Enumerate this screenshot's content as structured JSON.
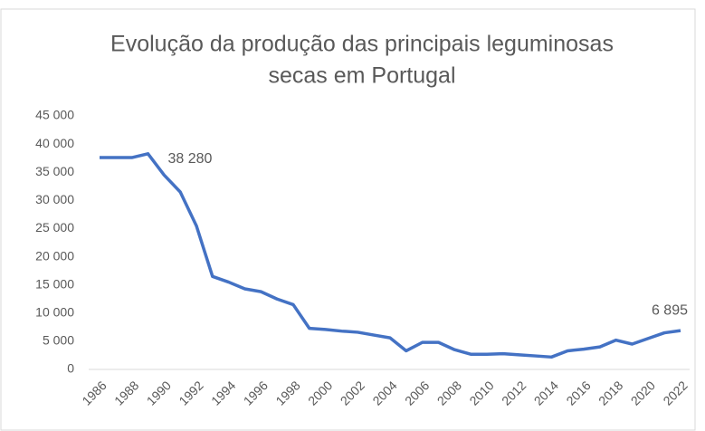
{
  "chart_data": {
    "type": "line",
    "title": [
      "Evolução da produção das principais leguminosas",
      "secas em Portugal"
    ],
    "categories": [
      "1986",
      null,
      "1988",
      null,
      "1990",
      null,
      "1992",
      null,
      "1994",
      null,
      "1996",
      null,
      "1998",
      null,
      "2000",
      null,
      "2002",
      null,
      "2004",
      null,
      "2006",
      null,
      "2008",
      null,
      "2010",
      null,
      "2012",
      null,
      "2014",
      null,
      "2016",
      null,
      "2018",
      null,
      "2020",
      null,
      "2022"
    ],
    "series": [
      {
        "color": "#4472c4",
        "values": [
          37600,
          37600,
          37600,
          38280,
          34500,
          31500,
          25500,
          16500,
          15500,
          14300,
          13800,
          12500,
          11500,
          7300,
          7100,
          6800,
          6600,
          6100,
          5600,
          3300,
          4800,
          4800,
          3500,
          2700,
          2700,
          2800,
          2600,
          2400,
          2200,
          3300,
          3600,
          4000,
          5200,
          4500,
          5500,
          6500,
          6895
        ],
        "value_labels": [
          null,
          null,
          null,
          "38 280",
          null,
          null,
          null,
          null,
          null,
          null,
          null,
          null,
          null,
          null,
          null,
          null,
          null,
          null,
          null,
          null,
          null,
          null,
          null,
          null,
          null,
          null,
          null,
          null,
          null,
          null,
          null,
          null,
          null,
          null,
          null,
          null,
          "6 895"
        ]
      }
    ],
    "ylim": [
      0,
      45000
    ],
    "yticks": [
      0,
      {
        "value": 5000,
        "label": "5 000"
      },
      {
        "value": 10000,
        "label": "10 000"
      },
      {
        "value": 15000,
        "label": "15 000"
      },
      {
        "value": 20000,
        "label": "20 000"
      },
      {
        "value": 25000,
        "label": "25 000"
      },
      {
        "value": 30000,
        "label": "30 000"
      },
      {
        "value": 35000,
        "label": "35 000"
      },
      {
        "value": 40000,
        "label": "40 000"
      },
      {
        "value": 45000,
        "label": "45 000"
      }
    ],
    "grid": false
  }
}
